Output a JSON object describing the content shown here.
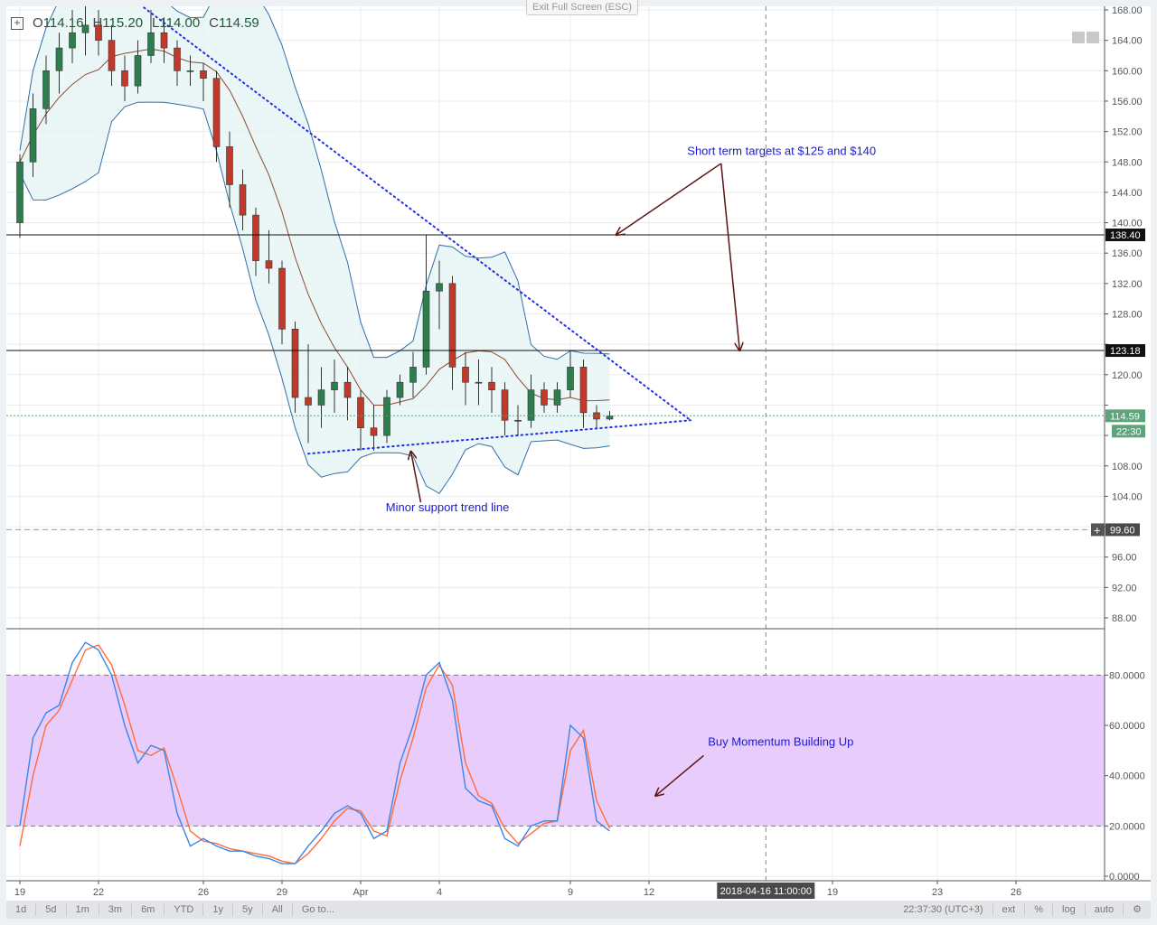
{
  "legend": {
    "o_label": "O",
    "o": "114.16",
    "h_label": "H",
    "h": "115.20",
    "l_label": "L",
    "l": "114.00",
    "c_label": "C",
    "c": "114.59"
  },
  "exit_fullscreen_label": "Exit Full Screen (ESC)",
  "colors": {
    "up": "#2e7d4f",
    "down": "#c0392b",
    "bands": "#2f6fa8",
    "band_fill": "#e6f4f4",
    "ma": "#8b4a2e",
    "trend": "#1f2ee8",
    "stoch_k": "#3d85e6",
    "stoch_d": "#ff6d3a",
    "stoch_zone": "#e8ccfb",
    "annotation_text": "#1a1ad6",
    "arrow": "#5a1414",
    "last_price": "#5fa37a"
  },
  "chart_data": [
    {
      "type": "candlestick",
      "pane": "price",
      "ylim": [
        86,
        169
      ],
      "grid": true,
      "y_ticks": [
        "88.00",
        "92.00",
        "96.00",
        "100.00",
        "104.00",
        "108.00",
        "112.00",
        "116.00",
        "120.00",
        "124.00",
        "128.00",
        "132.00",
        "136.00",
        "140.00",
        "144.00",
        "148.00",
        "152.00",
        "156.00",
        "160.00",
        "164.00",
        "168.00"
      ],
      "x_ticks": [
        [
          "2018-03-19 00:00",
          "19"
        ],
        [
          "2018-03-22 00:00",
          "22"
        ],
        [
          "2018-03-26 00:00",
          "26"
        ],
        [
          "2018-03-29 00:00",
          "29"
        ],
        [
          "2018-04-01 00:00",
          "Apr"
        ],
        [
          "2018-04-04 00:00",
          "4"
        ],
        [
          "2018-04-09 00:00",
          "9"
        ],
        [
          "2018-04-12 00:00",
          "12"
        ],
        [
          "2018-04-19 00:00",
          "19"
        ],
        [
          "2018-04-23 00:00",
          "23"
        ],
        [
          "2018-04-26 00:00",
          "26"
        ]
      ],
      "candles": [
        [
          "2018-03-19 00:00",
          140,
          149,
          138,
          148
        ],
        [
          "2018-03-19 12:00",
          148,
          157,
          146,
          155
        ],
        [
          "2018-03-20 00:00",
          155,
          162,
          153,
          160
        ],
        [
          "2018-03-20 12:00",
          160,
          165,
          157,
          163
        ],
        [
          "2018-03-21 00:00",
          163,
          168,
          161,
          165
        ],
        [
          "2018-03-21 12:00",
          165,
          169,
          162,
          166
        ],
        [
          "2018-03-22 00:00",
          166,
          168,
          162,
          164
        ],
        [
          "2018-03-22 12:00",
          164,
          166,
          158,
          160
        ],
        [
          "2018-03-23 00:00",
          160,
          162,
          156,
          158
        ],
        [
          "2018-03-23 12:00",
          158,
          164,
          157,
          162
        ],
        [
          "2018-03-24 00:00",
          162,
          168,
          161,
          165
        ],
        [
          "2018-03-24 12:00",
          165,
          167,
          161,
          163
        ],
        [
          "2018-03-25 00:00",
          163,
          164,
          158,
          160
        ],
        [
          "2018-03-25 12:00",
          160,
          162,
          158,
          160
        ],
        [
          "2018-03-26 00:00",
          160,
          161,
          156,
          159
        ],
        [
          "2018-03-26 12:00",
          159,
          160,
          148,
          150
        ],
        [
          "2018-03-27 00:00",
          150,
          152,
          142,
          145
        ],
        [
          "2018-03-27 12:00",
          145,
          147,
          139,
          141
        ],
        [
          "2018-03-28 00:00",
          141,
          142,
          133,
          135
        ],
        [
          "2018-03-28 12:00",
          135,
          139,
          132,
          134
        ],
        [
          "2018-03-29 00:00",
          134,
          135,
          124,
          126
        ],
        [
          "2018-03-29 12:00",
          126,
          127,
          115,
          117
        ],
        [
          "2018-03-30 00:00",
          117,
          124,
          111,
          116
        ],
        [
          "2018-03-30 12:00",
          116,
          121,
          113,
          118
        ],
        [
          "2018-03-31 00:00",
          118,
          122,
          115,
          119
        ],
        [
          "2018-03-31 12:00",
          119,
          121,
          114,
          117
        ],
        [
          "2018-04-01 00:00",
          117,
          118,
          110,
          113
        ],
        [
          "2018-04-01 12:00",
          113,
          116,
          110,
          112
        ],
        [
          "2018-04-02 00:00",
          112,
          118,
          111,
          117
        ],
        [
          "2018-04-02 12:00",
          117,
          120,
          116,
          119
        ],
        [
          "2018-04-03 00:00",
          119,
          123,
          117,
          121
        ],
        [
          "2018-04-03 12:00",
          121,
          138.4,
          120,
          131
        ],
        [
          "2018-04-04 00:00",
          131,
          135,
          126,
          132
        ],
        [
          "2018-04-04 12:00",
          132,
          133,
          118,
          121
        ],
        [
          "2018-04-05 00:00",
          121,
          123,
          116,
          119
        ],
        [
          "2018-04-05 12:00",
          119,
          122,
          116,
          119
        ],
        [
          "2018-04-06 00:00",
          119,
          121,
          115,
          118
        ],
        [
          "2018-04-06 12:00",
          118,
          119,
          112,
          114
        ],
        [
          "2018-04-07 00:00",
          114,
          116,
          112,
          114
        ],
        [
          "2018-04-07 12:00",
          114,
          120,
          113,
          118
        ],
        [
          "2018-04-08 00:00",
          118,
          119,
          115,
          116
        ],
        [
          "2018-04-08 12:00",
          116,
          119,
          115,
          118
        ],
        [
          "2018-04-09 00:00",
          118,
          123.2,
          117,
          121
        ],
        [
          "2018-04-09 12:00",
          121,
          122,
          113,
          115
        ],
        [
          "2018-04-10 00:00",
          115,
          116,
          113,
          114.16
        ],
        [
          "2018-04-10 12:00",
          114.16,
          115.2,
          114,
          114.59
        ]
      ],
      "horizontal_lines": [
        {
          "price": 138.4,
          "label": "138.40",
          "style": "solid"
        },
        {
          "price": 123.18,
          "label": "123.18",
          "style": "solid"
        },
        {
          "price": 99.6,
          "label": "99.60",
          "style": "dashed"
        }
      ],
      "last_price": {
        "price": 114.59,
        "label": "114.59",
        "countdown": "22:30"
      },
      "trend_lines": [
        {
          "from": [
            "2018-03-23 14:00",
            168.7
          ],
          "to": [
            "2018-04-13 14:00",
            114.0
          ]
        },
        {
          "from": [
            "2018-03-30 00:00",
            109.6
          ],
          "to": [
            "2018-04-13 14:00",
            114.0
          ]
        }
      ],
      "annotations": [
        {
          "text": "Short term targets at $125 and $140",
          "at": [
            "2018-04-13 11:00",
            148.9
          ]
        },
        {
          "text": "Minor support trend line",
          "at": [
            "2018-04-01 23:00",
            102.0
          ]
        }
      ],
      "arrows": [
        {
          "from": [
            "2018-04-14 18:00",
            147.8
          ],
          "to": [
            "2018-04-10 18:00",
            138.4
          ]
        },
        {
          "from": [
            "2018-04-14 18:00",
            147.8
          ],
          "to": [
            "2018-04-15 11:00",
            123.2
          ]
        },
        {
          "from": [
            "2018-04-03 07:00",
            103.2
          ],
          "to": [
            "2018-04-02 22:00",
            109.9
          ]
        }
      ],
      "indicators": [
        "Bollinger Bands",
        "Moving Average"
      ]
    },
    {
      "type": "line",
      "pane": "stochastic",
      "ylim": [
        -2,
        92
      ],
      "y_ticks": [
        "0.0000",
        "20.0000",
        "40.0000",
        "60.0000",
        "80.0000"
      ],
      "band": [
        20,
        80
      ],
      "k": [
        20,
        55,
        65,
        68,
        85,
        93,
        90,
        80,
        60,
        45,
        52,
        50,
        25,
        12,
        15,
        12,
        10,
        10,
        8,
        7,
        5,
        5,
        12,
        18,
        25,
        28,
        25,
        15,
        18,
        45,
        60,
        80,
        85,
        70,
        35,
        30,
        28,
        15,
        12,
        20,
        22,
        22,
        60,
        55,
        22,
        18
      ],
      "d": [
        12,
        40,
        60,
        66,
        78,
        90,
        92,
        84,
        68,
        50,
        48,
        51,
        35,
        18,
        14,
        13,
        11,
        10,
        9,
        8,
        6,
        5,
        9,
        15,
        22,
        27,
        26,
        18,
        16,
        38,
        55,
        75,
        84,
        76,
        45,
        32,
        29,
        19,
        13,
        17,
        21,
        22,
        50,
        58,
        30,
        19
      ],
      "annotations": [
        {
          "text": "Buy Momentum Building Up",
          "at": [
            "2018-04-14 06:00",
            52
          ]
        }
      ],
      "arrows": [
        {
          "from": [
            "2018-04-14 02:00",
            48
          ],
          "to": [
            "2018-04-12 06:00",
            32
          ]
        }
      ]
    }
  ],
  "crosshair": {
    "time": "2018-04-16 11:00",
    "label": "2018-04-16 11:00:00"
  },
  "toolbar": {
    "ranges": [
      "1d",
      "5d",
      "1m",
      "3m",
      "6m",
      "YTD",
      "1y",
      "5y",
      "All",
      "Go to..."
    ],
    "clock": "22:37:30 (UTC+3)",
    "options": [
      "ext",
      "%",
      "log",
      "auto"
    ],
    "settings_icon": "gear-icon"
  }
}
